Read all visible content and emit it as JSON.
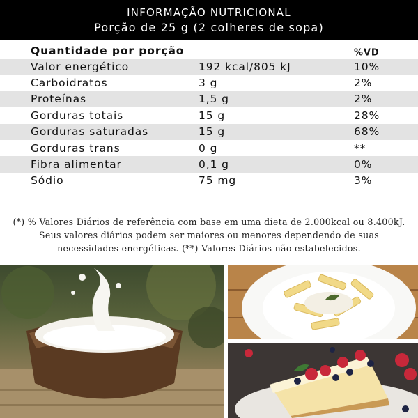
{
  "header": {
    "title": "INFORMAÇÃO NUTRICIONAL",
    "subtitle": "Porção de 25 g (2 colheres de sopa)"
  },
  "table": {
    "head_label": "Quantidade por porção",
    "head_vd": "%VD",
    "rows": [
      {
        "name": "Valor energético",
        "amount": "192 kcal/805 kJ",
        "vd": "10%"
      },
      {
        "name": "Carboidratos",
        "amount": "3 g",
        "vd": "2%"
      },
      {
        "name": "Proteínas",
        "amount": "1,5 g",
        "vd": "2%"
      },
      {
        "name": "Gorduras totais",
        "amount": "15 g",
        "vd": "28%"
      },
      {
        "name": "Gorduras saturadas",
        "amount": "15 g",
        "vd": "68%"
      },
      {
        "name": "Gorduras trans",
        "amount": "0 g",
        "vd": "**"
      },
      {
        "name": "Fibra alimentar",
        "amount": "0,1 g",
        "vd": "0%"
      },
      {
        "name": "Sódio",
        "amount": "75 mg",
        "vd": "3%"
      }
    ]
  },
  "footnote": "(*) % Valores Diários de referência com base em uma dieta de 2.000kcal ou 8.400kJ. Seus valores diários podem ser maiores ou menores dependendo de suas necessidades energéticas. (**) Valores Diários não estabelecidos.",
  "photos": {
    "coconut": "coconut-photo",
    "pasta": "pasta-photo",
    "cake": "cheesecake-photo"
  }
}
